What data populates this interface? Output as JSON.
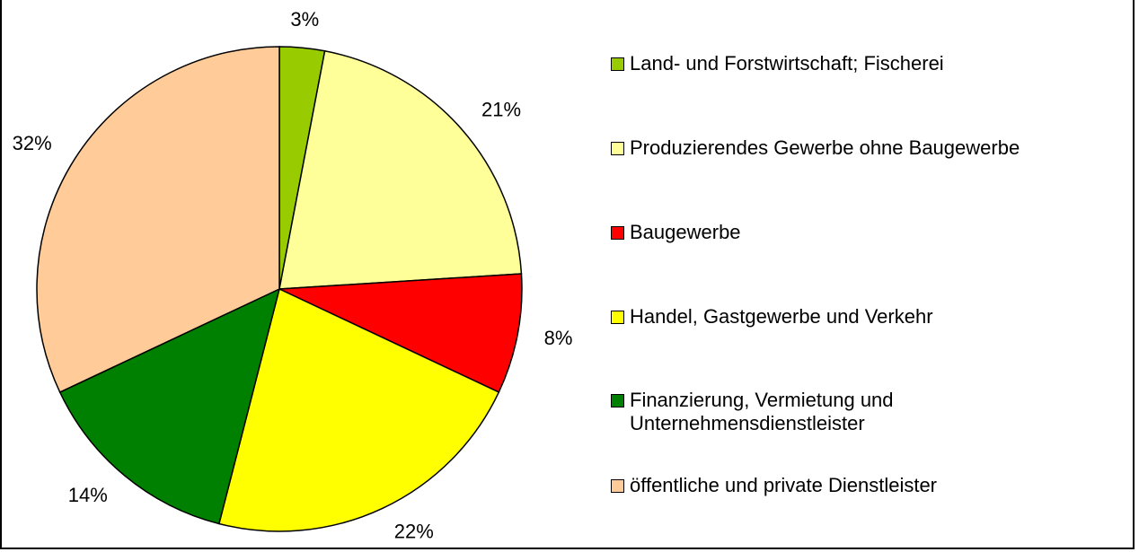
{
  "chart_data": {
    "type": "pie",
    "categories": [
      "Land- und Forstwirtschaft; Fischerei",
      "Produzierendes Gewerbe ohne Baugewerbe",
      "Baugewerbe",
      "Handel, Gastgewerbe und Verkehr",
      "Finanzierung, Vermietung und Unternehmensdienstleister",
      "öffentliche und private Dienstleister"
    ],
    "values": [
      3,
      21,
      8,
      22,
      14,
      32
    ],
    "value_labels": [
      "3%",
      "21%",
      "8%",
      "22%",
      "14%",
      "32%"
    ],
    "colors": [
      "#99cc00",
      "#ffff99",
      "#ff0000",
      "#ffff00",
      "#008000",
      "#ffcc99"
    ],
    "legend": "right"
  }
}
